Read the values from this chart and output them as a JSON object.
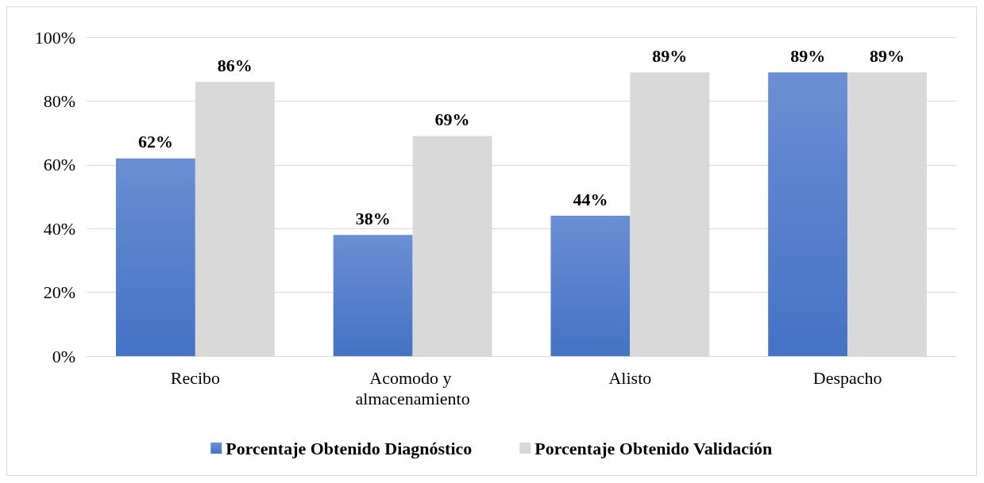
{
  "chart_data": {
    "type": "bar",
    "categories": [
      "Recibo",
      "Acomodo y almacenamiento",
      "Alisto",
      "Despacho"
    ],
    "series": [
      {
        "name": "Porcentaje Obtenido Diagnóstico",
        "color": "#4472c4",
        "values": [
          62,
          38,
          44,
          89
        ],
        "value_labels": [
          "62%",
          "38%",
          "44%",
          "89%"
        ]
      },
      {
        "name": "Porcentaje Obtenido Validación",
        "color": "#d9d9d9",
        "values": [
          86,
          69,
          89,
          89
        ],
        "value_labels": [
          "86%",
          "69%",
          "89%",
          "89%"
        ]
      }
    ],
    "ylim": [
      0,
      100
    ],
    "yticks": [
      {
        "value": 0,
        "label": "0%"
      },
      {
        "value": 20,
        "label": "20%"
      },
      {
        "value": 40,
        "label": "40%"
      },
      {
        "value": 60,
        "label": "60%"
      },
      {
        "value": 80,
        "label": "80%"
      },
      {
        "value": 100,
        "label": "100%"
      }
    ],
    "grid": "y",
    "legend": "bottom"
  }
}
